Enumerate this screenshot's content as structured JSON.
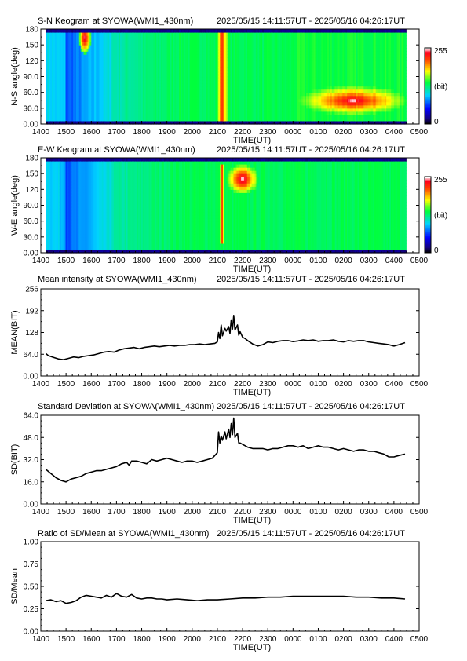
{
  "figure": {
    "station": "SYOWA",
    "instrument": "WMI1_430nm",
    "time_range": "2025/05/15 14:11:57UT - 2025/05/16 04:26:17UT",
    "x_tick_labels": [
      "1400",
      "1500",
      "1600",
      "1700",
      "1800",
      "1900",
      "2000",
      "2100",
      "2200",
      "2300",
      "0000",
      "0100",
      "0200",
      "0300",
      "0400",
      "0500"
    ],
    "x_axis_label": "TIME(UT)",
    "colorbar_labels": [
      "255",
      "(bit)",
      "0"
    ],
    "colors": {
      "line": "#000000",
      "frame": "#000000"
    }
  },
  "chart_data": [
    {
      "type": "heatmap",
      "title": "S-N Keogram at SYOWA(WMI1_430nm)",
      "subtitle": "2025/05/15 14:11:57UT - 2025/05/16 04:26:17UT",
      "xlabel": "TIME(UT)",
      "ylabel": "N-S angle(deg)",
      "xlim": [
        14.0,
        29.0
      ],
      "ylim": [
        0,
        180
      ],
      "x_ticks": [
        "1400",
        "1500",
        "1600",
        "1700",
        "1800",
        "1900",
        "2000",
        "2100",
        "2200",
        "2300",
        "0000",
        "0100",
        "0200",
        "0300",
        "0400",
        "0500"
      ],
      "y_ticks": [
        "0.00",
        "30.0",
        "60.0",
        "90.0",
        "120",
        "150",
        "180"
      ],
      "colorbar": {
        "min": 0,
        "max": 255,
        "unit": "(bit)",
        "colormap": "rainbow"
      },
      "data_end_hour": 28.44,
      "features": [
        {
          "name": "bright patch",
          "t_start": 15.6,
          "t_end": 15.9,
          "angle": 163,
          "level": 255
        },
        {
          "name": "vertical bright band",
          "t_start": 21.0,
          "t_end": 21.4,
          "angle_range": [
            8,
            172
          ],
          "level": 230
        },
        {
          "name": "bright patch",
          "t_start": 25.0,
          "t_end": 27.8,
          "angle": 45,
          "level": 250
        }
      ]
    },
    {
      "type": "heatmap",
      "title": "E-W Keogram at SYOWA(WMI1_430nm)",
      "subtitle": "2025/05/15 14:11:57UT - 2025/05/16 04:26:17UT",
      "xlabel": "TIME(UT)",
      "ylabel": "W-E angle(deg)",
      "xlim": [
        14.0,
        29.0
      ],
      "ylim": [
        0,
        180
      ],
      "x_ticks": [
        "1400",
        "1500",
        "1600",
        "1700",
        "1800",
        "1900",
        "2000",
        "2100",
        "2200",
        "2300",
        "0000",
        "0100",
        "0200",
        "0300",
        "0400",
        "0500"
      ],
      "y_ticks": [
        "0.00",
        "30.0",
        "60.0",
        "90.0",
        "120",
        "150",
        "180"
      ],
      "colorbar": {
        "min": 0,
        "max": 255,
        "unit": "(bit)",
        "colormap": "rainbow"
      },
      "data_end_hour": 28.44,
      "features": [
        {
          "name": "bright patch",
          "t_start": 21.6,
          "t_end": 22.4,
          "angle": 140,
          "level": 255
        },
        {
          "name": "vertical bright band",
          "t_start": 21.1,
          "t_end": 21.3,
          "angle_range": [
            20,
            170
          ],
          "level": 220
        }
      ]
    },
    {
      "type": "line",
      "title": "Mean intensity at SYOWA(WMI1_430nm)",
      "subtitle": "2025/05/15 14:11:57UT - 2025/05/16 04:26:17UT",
      "xlabel": "TIME(UT)",
      "ylabel": "MEAN(BIT)",
      "xlim": [
        14.0,
        29.0
      ],
      "ylim": [
        0,
        256
      ],
      "x_ticks": [
        "1400",
        "1500",
        "1600",
        "1700",
        "1800",
        "1900",
        "2000",
        "2100",
        "2200",
        "2300",
        "0000",
        "0100",
        "0200",
        "0300",
        "0400",
        "0500"
      ],
      "y_ticks": [
        "0.00",
        "64.0",
        "128",
        "192",
        "256"
      ],
      "grid": false,
      "series": [
        {
          "x": [
            14.2,
            14.3,
            14.5,
            14.7,
            14.9,
            15.1,
            15.3,
            15.5,
            15.7,
            15.9,
            16.1,
            16.3,
            16.5,
            16.7,
            16.9,
            17.1,
            17.3,
            17.5,
            17.7,
            17.9,
            18.1,
            18.3,
            18.5,
            18.7,
            18.9,
            19.1,
            19.3,
            19.5,
            19.7,
            19.9,
            20.1,
            20.3,
            20.5,
            20.7,
            20.9,
            21.0,
            21.05,
            21.1,
            21.15,
            21.2,
            21.3,
            21.35,
            21.45,
            21.5,
            21.55,
            21.6,
            21.65,
            21.7,
            21.8,
            21.85,
            21.9,
            22.0,
            22.1,
            22.2,
            22.4,
            22.6,
            22.8,
            23.0,
            23.2,
            23.4,
            23.6,
            23.8,
            24.0,
            24.2,
            24.4,
            24.6,
            24.8,
            25.0,
            25.2,
            25.4,
            25.6,
            25.8,
            26.0,
            26.2,
            26.4,
            26.6,
            26.8,
            27.0,
            27.2,
            27.4,
            27.6,
            27.8,
            28.0,
            28.2,
            28.44
          ],
          "y": [
            66,
            60,
            55,
            50,
            48,
            52,
            56,
            54,
            58,
            60,
            62,
            66,
            70,
            72,
            70,
            76,
            80,
            82,
            84,
            80,
            84,
            86,
            88,
            86,
            88,
            90,
            88,
            90,
            90,
            92,
            92,
            94,
            92,
            94,
            96,
            100,
            128,
            110,
            150,
            118,
            140,
            132,
            145,
            125,
            165,
            138,
            178,
            135,
            150,
            120,
            130,
            114,
            110,
            104,
            94,
            88,
            92,
            100,
            98,
            102,
            104,
            104,
            101,
            103,
            106,
            104,
            106,
            102,
            104,
            104,
            106,
            102,
            100,
            104,
            102,
            104,
            104,
            100,
            98,
            96,
            94,
            92,
            88,
            92,
            98
          ]
        }
      ]
    },
    {
      "type": "line",
      "title": "Standard Deviation at SYOWA(WMI1_430nm)",
      "subtitle": "2025/05/15 14:11:57UT - 2025/05/16 04:26:17UT",
      "xlabel": "TIME(UT)",
      "ylabel": "SD(BIT)",
      "xlim": [
        14.0,
        29.0
      ],
      "ylim": [
        0,
        64
      ],
      "x_ticks": [
        "1400",
        "1500",
        "1600",
        "1700",
        "1800",
        "1900",
        "2000",
        "2100",
        "2200",
        "2300",
        "0000",
        "0100",
        "0200",
        "0300",
        "0400",
        "0500"
      ],
      "y_ticks": [
        "0.00",
        "16.0",
        "32.0",
        "48.0",
        "64.0"
      ],
      "grid": false,
      "series": [
        {
          "x": [
            14.2,
            14.4,
            14.6,
            14.8,
            15.0,
            15.2,
            15.4,
            15.6,
            15.8,
            16.0,
            16.2,
            16.4,
            16.6,
            16.8,
            17.0,
            17.2,
            17.4,
            17.5,
            17.6,
            17.8,
            18.0,
            18.2,
            18.4,
            18.6,
            18.8,
            19.0,
            19.2,
            19.4,
            19.6,
            19.8,
            20.0,
            20.2,
            20.4,
            20.6,
            20.8,
            21.0,
            21.05,
            21.1,
            21.15,
            21.2,
            21.3,
            21.35,
            21.45,
            21.5,
            21.55,
            21.6,
            21.65,
            21.7,
            21.8,
            21.85,
            21.9,
            22.0,
            22.2,
            22.4,
            22.6,
            22.8,
            23.0,
            23.2,
            23.4,
            23.6,
            23.8,
            24.0,
            24.2,
            24.4,
            24.6,
            24.8,
            25.0,
            25.2,
            25.4,
            25.6,
            25.8,
            26.0,
            26.2,
            26.4,
            26.6,
            26.8,
            27.0,
            27.2,
            27.4,
            27.6,
            27.8,
            28.0,
            28.2,
            28.44
          ],
          "y": [
            25,
            22,
            19,
            17,
            16,
            18,
            19,
            20,
            22,
            23,
            24,
            24,
            25,
            26,
            27,
            29,
            30,
            28,
            31,
            31,
            30,
            29,
            32,
            31,
            32,
            33,
            32,
            31,
            30,
            31,
            31,
            30,
            31,
            32,
            33,
            37,
            52,
            44,
            49,
            46,
            52,
            47,
            54,
            48,
            58,
            50,
            62,
            48,
            51,
            44,
            44,
            43,
            41,
            40,
            40,
            40,
            39,
            40,
            40,
            41,
            42,
            42,
            41,
            42,
            40,
            41,
            42,
            41,
            41,
            40,
            39,
            40,
            39,
            38,
            39,
            39,
            38,
            38,
            37,
            36,
            34,
            34,
            35,
            36
          ]
        }
      ]
    },
    {
      "type": "line",
      "title": "Ratio of SD/Mean at SYOWA(WMI1_430nm)",
      "subtitle": "2025/05/15 14:11:57UT - 2025/05/16 04:26:17UT",
      "xlabel": "TIME(UT)",
      "ylabel": "SD/Mean",
      "xlim": [
        14.0,
        29.0
      ],
      "ylim": [
        0,
        1
      ],
      "x_ticks": [
        "1400",
        "1500",
        "1600",
        "1700",
        "1800",
        "1900",
        "2000",
        "2100",
        "2200",
        "2300",
        "0000",
        "0100",
        "0200",
        "0300",
        "0400",
        "0500"
      ],
      "y_ticks": [
        "0.00",
        "0.25",
        "0.50",
        "0.75",
        "1.00"
      ],
      "grid": false,
      "series": [
        {
          "x": [
            14.2,
            14.4,
            14.6,
            14.8,
            15.0,
            15.2,
            15.4,
            15.6,
            15.8,
            16.0,
            16.2,
            16.4,
            16.6,
            16.8,
            17.0,
            17.2,
            17.4,
            17.6,
            17.8,
            18.0,
            18.2,
            18.4,
            18.6,
            18.8,
            19.0,
            19.4,
            19.8,
            20.2,
            20.6,
            21.0,
            21.5,
            22.0,
            22.5,
            23.0,
            23.5,
            24.0,
            24.5,
            25.0,
            25.5,
            26.0,
            26.5,
            27.0,
            27.5,
            28.0,
            28.44
          ],
          "y": [
            0.34,
            0.35,
            0.33,
            0.34,
            0.31,
            0.32,
            0.34,
            0.38,
            0.4,
            0.39,
            0.38,
            0.37,
            0.4,
            0.38,
            0.42,
            0.39,
            0.38,
            0.41,
            0.37,
            0.36,
            0.37,
            0.37,
            0.36,
            0.36,
            0.35,
            0.36,
            0.35,
            0.34,
            0.35,
            0.35,
            0.36,
            0.37,
            0.37,
            0.38,
            0.38,
            0.39,
            0.39,
            0.39,
            0.39,
            0.39,
            0.38,
            0.38,
            0.37,
            0.37,
            0.36
          ]
        }
      ]
    }
  ]
}
